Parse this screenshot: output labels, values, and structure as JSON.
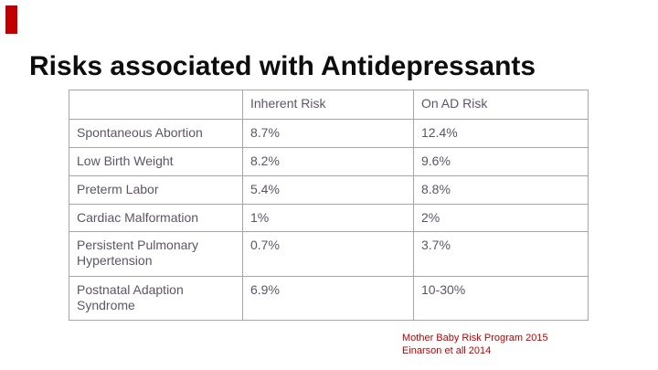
{
  "slide": {
    "title": "Risks associated with Antidepressants",
    "accent_color": "#C00000",
    "background_color": "#FFFFFF"
  },
  "table": {
    "headers": [
      "",
      "Inherent Risk",
      "On AD Risk"
    ],
    "rows": [
      {
        "label": "Spontaneous Abortion",
        "inherent_risk": "8.7%",
        "on_ad_risk": "12.4%"
      },
      {
        "label": "Low Birth Weight",
        "inherent_risk": "8.2%",
        "on_ad_risk": "9.6%"
      },
      {
        "label": "Preterm Labor",
        "inherent_risk": "5.4%",
        "on_ad_risk": "8.8%"
      },
      {
        "label": "Cardiac Malformation",
        "inherent_risk": "1%",
        "on_ad_risk": "2%"
      },
      {
        "label": "Persistent Pulmonary Hypertension",
        "inherent_risk": "0.7%",
        "on_ad_risk": "3.7%"
      },
      {
        "label": "Postnatal Adaption Syndrome",
        "inherent_risk": "6.9%",
        "on_ad_risk": "10-30%"
      }
    ],
    "text_color": "#5E5468",
    "border_color": "#A6A6A6"
  },
  "citation": {
    "line1": "Mother Baby Risk Program 2015",
    "line2": "Einarson et all 2014",
    "color": "#C00000"
  }
}
